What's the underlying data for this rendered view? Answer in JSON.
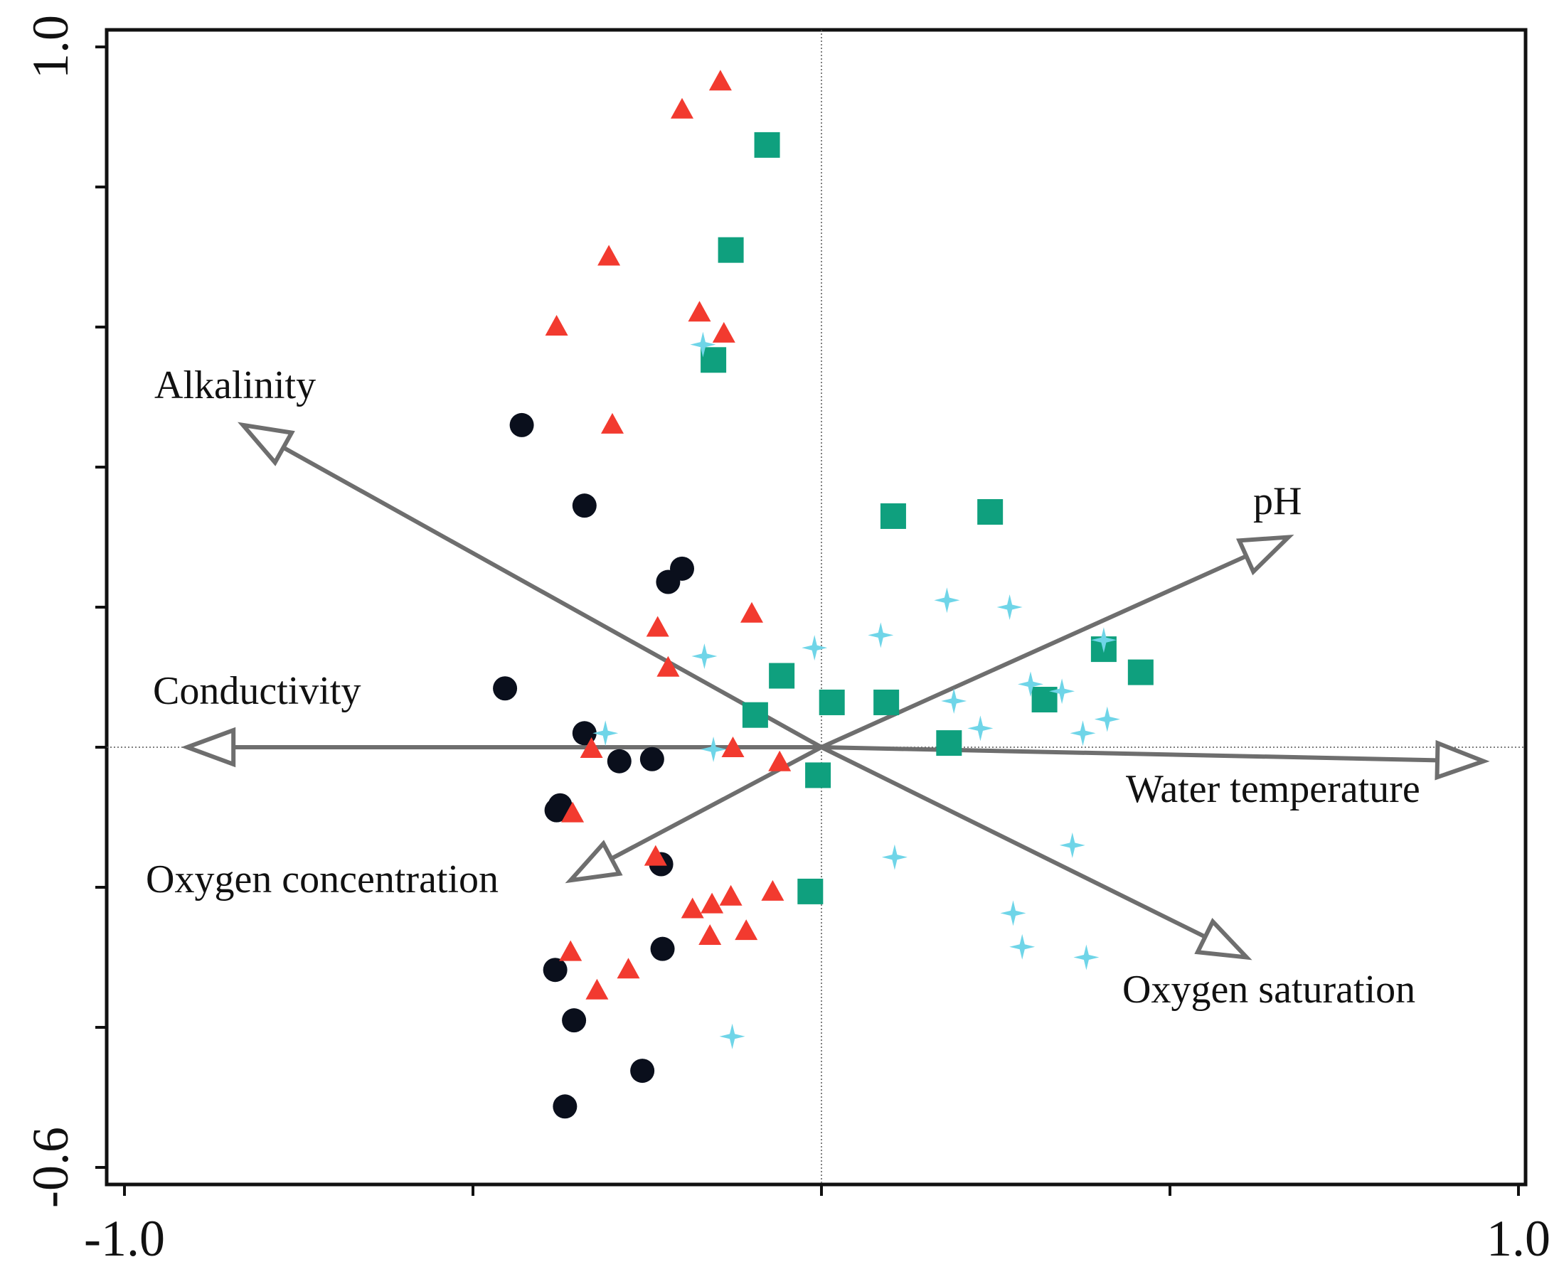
{
  "chart_data": {
    "type": "scatter",
    "title": "",
    "xlabel": "",
    "ylabel": "",
    "xlim": [
      -1.0,
      1.0
    ],
    "ylim": [
      -0.6,
      1.0
    ],
    "x_tick_labels": [
      {
        "value": -1.0,
        "label": "-1.0"
      },
      {
        "value": 1.0,
        "label": "1.0"
      }
    ],
    "y_tick_labels": [
      {
        "value": 1.0,
        "label": "1.0"
      },
      {
        "value": -0.6,
        "label": "-0.6"
      }
    ],
    "x_ticks": [
      -1.0,
      -0.5,
      0.0,
      0.5,
      1.0
    ],
    "y_ticks": [
      -0.6,
      -0.4,
      -0.2,
      0.0,
      0.2,
      0.4,
      0.6,
      0.8,
      1.0
    ],
    "grid": false,
    "origin_lines": true,
    "vectors": [
      {
        "name": "Alkalinity",
        "x": -0.83,
        "y": 0.46
      },
      {
        "name": "pH",
        "x": 0.67,
        "y": 0.3
      },
      {
        "name": "Conductivity",
        "x": -0.91,
        "y": 0.0
      },
      {
        "name": "Water temperature",
        "x": 0.95,
        "y": -0.02
      },
      {
        "name": "Oxygen concentration",
        "x": -0.36,
        "y": -0.19
      },
      {
        "name": "Oxygen saturation",
        "x": 0.61,
        "y": -0.3
      }
    ],
    "series": [
      {
        "name": "circles",
        "marker": "circle",
        "color": "#0a0f1c",
        "points": [
          {
            "x": -0.43,
            "y": 0.46
          },
          {
            "x": -0.34,
            "y": 0.345
          },
          {
            "x": -0.2,
            "y": 0.255
          },
          {
            "x": -0.22,
            "y": 0.236
          },
          {
            "x": -0.454,
            "y": 0.084
          },
          {
            "x": -0.34,
            "y": 0.02
          },
          {
            "x": -0.29,
            "y": -0.02
          },
          {
            "x": -0.243,
            "y": -0.017
          },
          {
            "x": -0.375,
            "y": -0.083
          },
          {
            "x": -0.38,
            "y": -0.09
          },
          {
            "x": -0.23,
            "y": -0.167
          },
          {
            "x": -0.228,
            "y": -0.288
          },
          {
            "x": -0.382,
            "y": -0.318
          },
          {
            "x": -0.355,
            "y": -0.39
          },
          {
            "x": -0.257,
            "y": -0.462
          },
          {
            "x": -0.368,
            "y": -0.513
          }
        ]
      },
      {
        "name": "triangles",
        "marker": "triangle",
        "color": "#f23a2f",
        "points": [
          {
            "x": -0.145,
            "y": 0.95
          },
          {
            "x": -0.2,
            "y": 0.91
          },
          {
            "x": -0.305,
            "y": 0.7
          },
          {
            "x": -0.38,
            "y": 0.6
          },
          {
            "x": -0.175,
            "y": 0.62
          },
          {
            "x": -0.14,
            "y": 0.59
          },
          {
            "x": -0.3,
            "y": 0.46
          },
          {
            "x": -0.1,
            "y": 0.19
          },
          {
            "x": -0.235,
            "y": 0.17
          },
          {
            "x": -0.22,
            "y": 0.113
          },
          {
            "x": -0.33,
            "y": -0.003
          },
          {
            "x": -0.127,
            "y": -0.002
          },
          {
            "x": -0.06,
            "y": -0.022
          },
          {
            "x": -0.357,
            "y": -0.095
          },
          {
            "x": -0.238,
            "y": -0.157
          },
          {
            "x": -0.07,
            "y": -0.207
          },
          {
            "x": -0.13,
            "y": -0.214
          },
          {
            "x": -0.157,
            "y": -0.225
          },
          {
            "x": -0.185,
            "y": -0.232
          },
          {
            "x": -0.16,
            "y": -0.27
          },
          {
            "x": -0.108,
            "y": -0.263
          },
          {
            "x": -0.36,
            "y": -0.293
          },
          {
            "x": -0.277,
            "y": -0.318
          },
          {
            "x": -0.322,
            "y": -0.348
          }
        ]
      },
      {
        "name": "squares",
        "marker": "square",
        "color": "#0fa07e",
        "points": [
          {
            "x": -0.078,
            "y": 0.86
          },
          {
            "x": -0.13,
            "y": 0.71
          },
          {
            "x": -0.155,
            "y": 0.553
          },
          {
            "x": 0.103,
            "y": 0.33
          },
          {
            "x": 0.242,
            "y": 0.336
          },
          {
            "x": 0.405,
            "y": 0.14
          },
          {
            "x": 0.458,
            "y": 0.107
          },
          {
            "x": -0.057,
            "y": 0.102
          },
          {
            "x": 0.015,
            "y": 0.064
          },
          {
            "x": 0.093,
            "y": 0.064
          },
          {
            "x": 0.32,
            "y": 0.068
          },
          {
            "x": -0.095,
            "y": 0.046
          },
          {
            "x": 0.183,
            "y": 0.006
          },
          {
            "x": -0.005,
            "y": -0.04
          },
          {
            "x": -0.016,
            "y": -0.206
          }
        ]
      },
      {
        "name": "stars",
        "marker": "star",
        "color": "#6fd5e8",
        "points": [
          {
            "x": -0.17,
            "y": 0.575
          },
          {
            "x": 0.18,
            "y": 0.21
          },
          {
            "x": 0.27,
            "y": 0.2
          },
          {
            "x": 0.085,
            "y": 0.16
          },
          {
            "x": 0.405,
            "y": 0.153
          },
          {
            "x": -0.01,
            "y": 0.142
          },
          {
            "x": -0.168,
            "y": 0.13
          },
          {
            "x": 0.3,
            "y": 0.09
          },
          {
            "x": 0.345,
            "y": 0.08
          },
          {
            "x": 0.19,
            "y": 0.066
          },
          {
            "x": 0.41,
            "y": 0.04
          },
          {
            "x": 0.228,
            "y": 0.027
          },
          {
            "x": 0.375,
            "y": 0.02
          },
          {
            "x": -0.31,
            "y": 0.02
          },
          {
            "x": -0.155,
            "y": -0.003
          },
          {
            "x": 0.36,
            "y": -0.14
          },
          {
            "x": 0.105,
            "y": -0.157
          },
          {
            "x": 0.275,
            "y": -0.237
          },
          {
            "x": 0.288,
            "y": -0.285
          },
          {
            "x": 0.38,
            "y": -0.3
          },
          {
            "x": -0.128,
            "y": -0.413
          }
        ]
      }
    ]
  }
}
